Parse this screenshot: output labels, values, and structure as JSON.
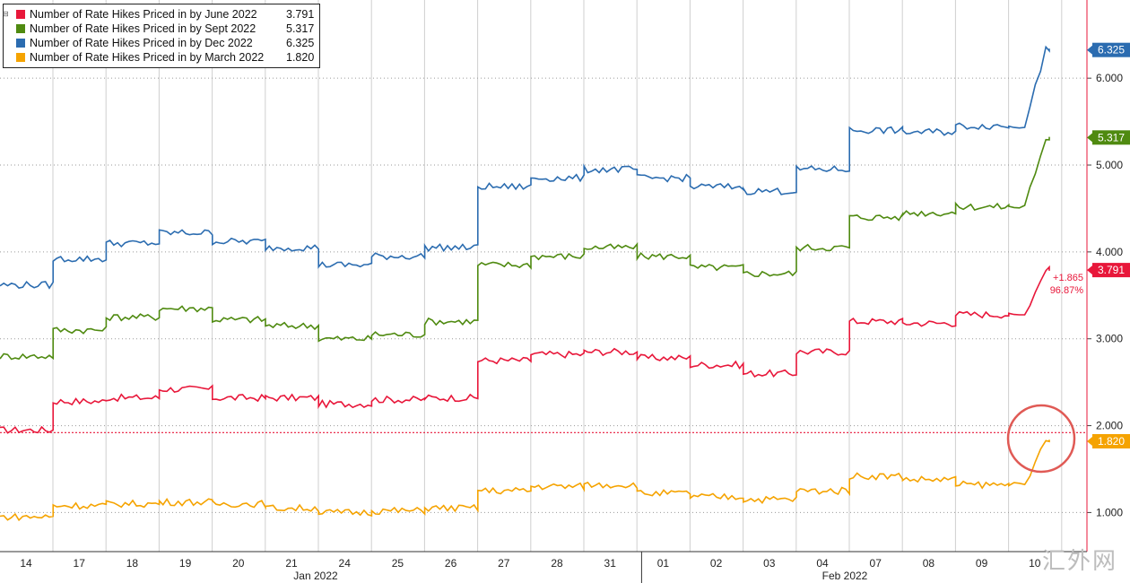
{
  "chart_data": {
    "type": "line",
    "x_tick_labels": [
      "14",
      "17",
      "18",
      "19",
      "20",
      "21",
      "24",
      "25",
      "26",
      "27",
      "28",
      "31",
      "01",
      "02",
      "03",
      "04",
      "07",
      "08",
      "09",
      "10"
    ],
    "month_labels": [
      "Jan 2022",
      "Feb 2022"
    ],
    "y_tick_labels": [
      "1.000",
      "2.000",
      "3.000",
      "4.000",
      "5.000",
      "6.000"
    ],
    "ylim": [
      0.55,
      6.9
    ],
    "grid": true,
    "reference_line": {
      "value": 1.92,
      "color": "#e8173a",
      "style": "dotted"
    },
    "annotation": {
      "change": "+1.865",
      "percent": "96.87%"
    },
    "series": [
      {
        "name": "Number of Rate Hikes Priced in by June 2022",
        "last": "3.791",
        "color": "#e8173a",
        "values": [
          1.95,
          2.28,
          2.32,
          2.42,
          2.32,
          2.32,
          2.25,
          2.3,
          2.32,
          2.75,
          2.82,
          2.85,
          2.78,
          2.7,
          2.6,
          2.85,
          3.2,
          3.18,
          3.28,
          3.79
        ]
      },
      {
        "name": "Number of Rate Hikes Priced in by Sept 2022",
        "last": "5.317",
        "color": "#4f8a10",
        "values": [
          2.8,
          3.1,
          3.25,
          3.35,
          3.22,
          3.15,
          3.0,
          3.05,
          3.2,
          3.85,
          3.95,
          4.05,
          3.95,
          3.82,
          3.75,
          4.05,
          4.4,
          4.45,
          4.52,
          5.32
        ]
      },
      {
        "name": "Number of Rate Hikes Priced in by Dec 2022",
        "last": "6.325",
        "color": "#2b6cb0",
        "values": [
          3.62,
          3.92,
          4.1,
          4.22,
          4.12,
          4.05,
          3.85,
          3.95,
          4.05,
          4.75,
          4.85,
          4.95,
          4.85,
          4.75,
          4.7,
          4.95,
          5.4,
          5.38,
          5.45,
          6.33
        ]
      },
      {
        "name": "Number of Rate Hikes Priced in by March 2022",
        "last": "1.820",
        "color": "#f5a300",
        "values": [
          0.95,
          1.08,
          1.1,
          1.12,
          1.1,
          1.05,
          1.0,
          1.02,
          1.05,
          1.25,
          1.3,
          1.32,
          1.22,
          1.18,
          1.15,
          1.25,
          1.42,
          1.38,
          1.32,
          1.82
        ]
      }
    ]
  }
}
